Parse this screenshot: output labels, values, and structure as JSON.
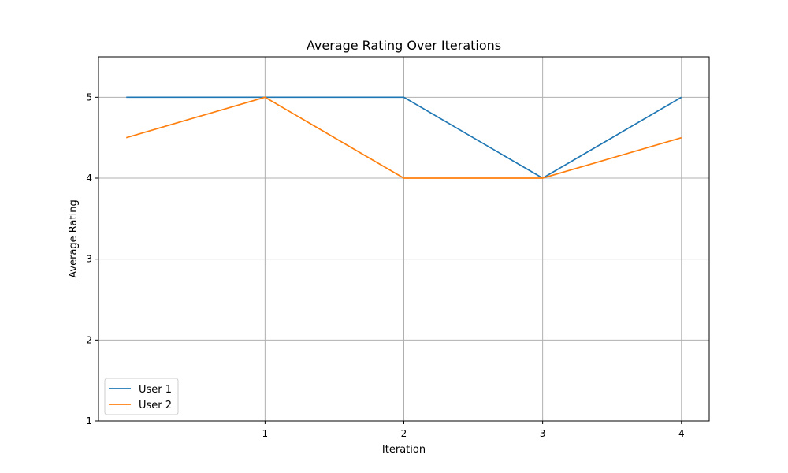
{
  "chart_data": {
    "type": "line",
    "title": "Average Rating Over Iterations",
    "xlabel": "Iteration",
    "ylabel": "Average Rating",
    "x": [
      0,
      1,
      2,
      3,
      4
    ],
    "x_ticks": [
      1,
      2,
      3,
      4
    ],
    "y_ticks": [
      1,
      2,
      3,
      4,
      5
    ],
    "xlim": [
      -0.2,
      4.2
    ],
    "ylim": [
      1,
      5.5
    ],
    "grid": true,
    "legend_position": "lower-left",
    "series": [
      {
        "name": "User 1",
        "color": "#1f77b4",
        "values": [
          5,
          5,
          5,
          4,
          5
        ]
      },
      {
        "name": "User 2",
        "color": "#ff7f0e",
        "values": [
          4.5,
          5,
          4,
          4,
          4.5
        ]
      }
    ]
  }
}
